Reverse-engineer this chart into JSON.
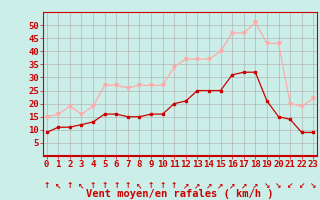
{
  "hours": [
    0,
    1,
    2,
    3,
    4,
    5,
    6,
    7,
    8,
    9,
    10,
    11,
    12,
    13,
    14,
    15,
    16,
    17,
    18,
    19,
    20,
    21,
    22,
    23
  ],
  "wind_avg": [
    9,
    11,
    11,
    12,
    13,
    16,
    16,
    15,
    15,
    16,
    16,
    20,
    21,
    25,
    25,
    25,
    31,
    32,
    32,
    21,
    15,
    14,
    9,
    9
  ],
  "wind_gust": [
    15,
    16,
    19,
    16,
    19,
    27,
    27,
    26,
    27,
    27,
    27,
    34,
    37,
    37,
    37,
    40,
    47,
    47,
    51,
    43,
    43,
    20,
    19,
    22
  ],
  "avg_color": "#cc0000",
  "gust_color": "#ffaaaa",
  "background_color": "#cceee8",
  "grid_color": "#aaaaaa",
  "xlabel": "Vent moyen/en rafales ( km/h )",
  "ylim": [
    0,
    55
  ],
  "yticks": [
    5,
    10,
    15,
    20,
    25,
    30,
    35,
    40,
    45,
    50
  ],
  "tick_fontsize": 6.5,
  "label_fontsize": 7.5,
  "arrow_symbols": [
    "↑",
    "↖",
    "↑",
    "↖",
    "↑",
    "↑",
    "↑",
    "↑",
    "↖",
    "↑",
    "↑",
    "↑",
    "↗",
    "↗",
    "↗",
    "↗",
    "↗",
    "↗",
    "↗",
    "↘",
    "↘",
    "↙",
    "↙",
    "↘"
  ]
}
